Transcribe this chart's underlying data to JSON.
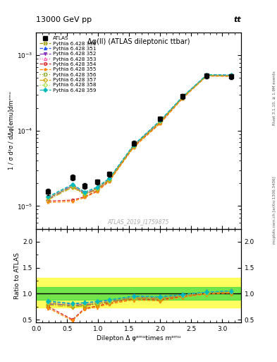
{
  "title_top": "13000 GeV pp",
  "title_top_right": "tt",
  "plot_title": "Δφ(ll) (ATLAS dileptonic ttbar)",
  "ylabel_main": "1 / σ d²σ / dΔφ[emu]dmᵉᵐᵘ",
  "ylabel_ratio": "Ratio to ATLAS",
  "xlabel": "Dilepton Δ φᵉᵐᵘtimes mᵉᵐᵘ",
  "watermark": "ATLAS_2019_I1759875",
  "right_label": "mcplots.cern.ch [arXiv:1306.3436]",
  "right_label2": "Rivet 3.1.10, ≥ 1.9M events",
  "xdata": [
    0.196,
    0.589,
    0.785,
    0.982,
    1.178,
    1.571,
    2.0,
    2.356,
    2.749,
    3.14
  ],
  "atlas_y": [
    1.55e-05,
    2.4e-05,
    1.85e-05,
    2.1e-05,
    2.65e-05,
    6.8e-05,
    0.000145,
    0.000285,
    0.000535,
    0.00052
  ],
  "atlas_yerr": [
    1.5e-06,
    2e-06,
    1.5e-06,
    1.5e-06,
    2e-06,
    5e-06,
    1e-05,
    2e-05,
    4e-05,
    4e-05
  ],
  "series": [
    {
      "label": "Pythia 6.428 350",
      "color": "#999900",
      "marker": "s",
      "linestyle": "--",
      "filled": false
    },
    {
      "label": "Pythia 6.428 351",
      "color": "#2255ff",
      "marker": "^",
      "linestyle": "--",
      "filled": true
    },
    {
      "label": "Pythia 6.428 352",
      "color": "#8833bb",
      "marker": "v",
      "linestyle": "-.",
      "filled": true
    },
    {
      "label": "Pythia 6.428 353",
      "color": "#ff55aa",
      "marker": "^",
      "linestyle": ":",
      "filled": false
    },
    {
      "label": "Pythia 6.428 354",
      "color": "#dd2222",
      "marker": "o",
      "linestyle": "--",
      "filled": false
    },
    {
      "label": "Pythia 6.428 355",
      "color": "#ff8800",
      "marker": "*",
      "linestyle": "--",
      "filled": true
    },
    {
      "label": "Pythia 6.428 356",
      "color": "#88aa22",
      "marker": "s",
      "linestyle": ":",
      "filled": false
    },
    {
      "label": "Pythia 6.428 357",
      "color": "#ccaa00",
      "marker": "D",
      "linestyle": "-.",
      "filled": false
    },
    {
      "label": "Pythia 6.428 358",
      "color": "#aadd44",
      "marker": "D",
      "linestyle": ":",
      "filled": false
    },
    {
      "label": "Pythia 6.428 359",
      "color": "#00bbbb",
      "marker": "D",
      "linestyle": "--",
      "filled": true
    }
  ],
  "ratio_values": [
    [
      0.82,
      0.76,
      0.78,
      0.81,
      0.85,
      0.93,
      0.92,
      0.97,
      1.02,
      1.04
    ],
    [
      0.85,
      0.8,
      0.82,
      0.84,
      0.87,
      0.95,
      0.94,
      0.98,
      1.03,
      1.05
    ],
    [
      0.8,
      0.78,
      0.79,
      0.8,
      0.84,
      0.92,
      0.91,
      0.96,
      1.01,
      1.03
    ],
    [
      0.83,
      0.77,
      0.8,
      0.82,
      0.86,
      0.94,
      0.93,
      0.97,
      1.02,
      1.04
    ],
    [
      0.75,
      0.5,
      0.72,
      0.76,
      0.82,
      0.9,
      0.88,
      0.95,
      1.0,
      1.02
    ],
    [
      0.72,
      0.48,
      0.7,
      0.74,
      0.8,
      0.88,
      0.86,
      0.93,
      0.99,
      1.01
    ],
    [
      0.82,
      0.76,
      0.78,
      0.81,
      0.85,
      0.93,
      0.92,
      0.97,
      1.02,
      1.04
    ],
    [
      0.78,
      0.74,
      0.76,
      0.79,
      0.83,
      0.91,
      0.9,
      0.96,
      1.01,
      1.03
    ],
    [
      0.84,
      0.79,
      0.81,
      0.83,
      0.86,
      0.94,
      0.93,
      0.97,
      1.02,
      1.04
    ],
    [
      0.86,
      0.81,
      0.83,
      0.85,
      0.88,
      0.95,
      0.94,
      0.98,
      1.03,
      1.05
    ]
  ],
  "ratio_band_yellow": [
    0.73,
    1.3
  ],
  "ratio_band_green": [
    0.88,
    1.12
  ],
  "ylim_main": [
    5e-06,
    0.002
  ],
  "ylim_ratio": [
    0.45,
    2.25
  ],
  "xlim": [
    0.0,
    3.3
  ],
  "yticks_ratio": [
    0.5,
    1.0,
    1.5,
    2.0
  ]
}
